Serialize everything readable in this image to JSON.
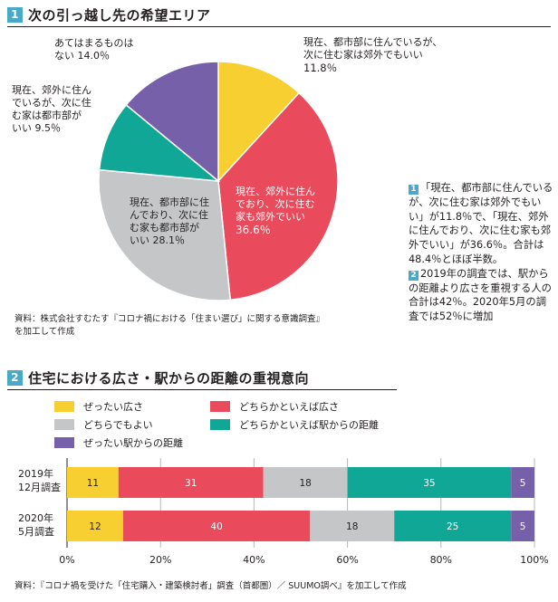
{
  "section1": {
    "number": "1",
    "title": "次の引っ越し先の希望エリア",
    "source_line1": "資料：株式会社すむたす『コロナ禍における「住まい選び」に関する意識調査』",
    "source_line2": "を加工して作成"
  },
  "section2": {
    "number": "2",
    "title": "住宅における広さ・駅からの距離の重視意向",
    "source": "資料：『コロナ禍を受けた「住宅購入・建築検討者」調査（首都圏）／ SUUMO調べ』を加工して作成"
  },
  "note": {
    "p1_num": "1",
    "p1": "「現在、都市部に住んでいるが、次に住む家は郊外でもいい」が11.8％で、「現在、郊外に住んでおり、次に住む家も郊外でいい」が36.6％。合計は48.4％とほぼ半数。",
    "p2_num": "2",
    "p2": "2019年の調査では、駅からの距離より広さを重視する人の合計は42％。2020年5月の調査では52％に増加"
  },
  "chart_data": [
    {
      "type": "pie",
      "title": "次の引っ越し先の希望エリア",
      "slices": [
        {
          "label_lines": [
            "現在、都市部に住んでいるが、",
            "次に住む家は郊外でもいい"
          ],
          "value_text": "11.8％",
          "value": 11.8,
          "color": "#f7cf30"
        },
        {
          "label_lines": [
            "現在、郊外に住ん",
            "でおり、次に住む",
            "家も郊外でいい"
          ],
          "value_text": "36.6％",
          "value": 36.6,
          "color": "#e94a5c"
        },
        {
          "label_lines": [
            "現在、都市部に住",
            "んでおり、次に住",
            "む家も都市部が"
          ],
          "value_text": "28.1％",
          "value": 28.1,
          "color": "#c5c6c8"
        },
        {
          "label_lines": [
            "現在、郊外に住ん",
            "でいるが、次に住",
            "む家は都市部が"
          ],
          "value_text": "9.5％",
          "value": 9.5,
          "color": "#11a796"
        },
        {
          "label_lines": [
            "あてはまるものは"
          ],
          "value_text": "14.0％",
          "value": 14.0,
          "color": "#7660a9"
        }
      ],
      "slice_prefix": {
        "3": "いい",
        "2": "いい",
        "4": "ない"
      }
    },
    {
      "type": "bar",
      "orientation": "horizontal-stacked",
      "title": "住宅における広さ・駅からの距離の重視意向",
      "categories": [
        [
          "2019年",
          "12月調査"
        ],
        [
          "2020年",
          "5月調査"
        ]
      ],
      "series": [
        {
          "name": "ぜったい広さ",
          "values": [
            11,
            12
          ],
          "color": "#f7cf30"
        },
        {
          "name": "どちらかといえば広さ",
          "values": [
            31,
            40
          ],
          "color": "#e94a5c"
        },
        {
          "name": "どちらでもよい",
          "values": [
            18,
            18
          ],
          "color": "#c5c6c8"
        },
        {
          "name": "どちらかといえば駅からの距離",
          "values": [
            35,
            25
          ],
          "color": "#11a796"
        },
        {
          "name": "ぜったい駅からの距離",
          "values": [
            5,
            5
          ],
          "color": "#7660a9"
        }
      ],
      "xlim": [
        0,
        100
      ],
      "x_ticks": [
        "0%",
        "20%",
        "40%",
        "60%",
        "80%",
        "100%"
      ],
      "grid": true,
      "legend_position": "top"
    }
  ]
}
